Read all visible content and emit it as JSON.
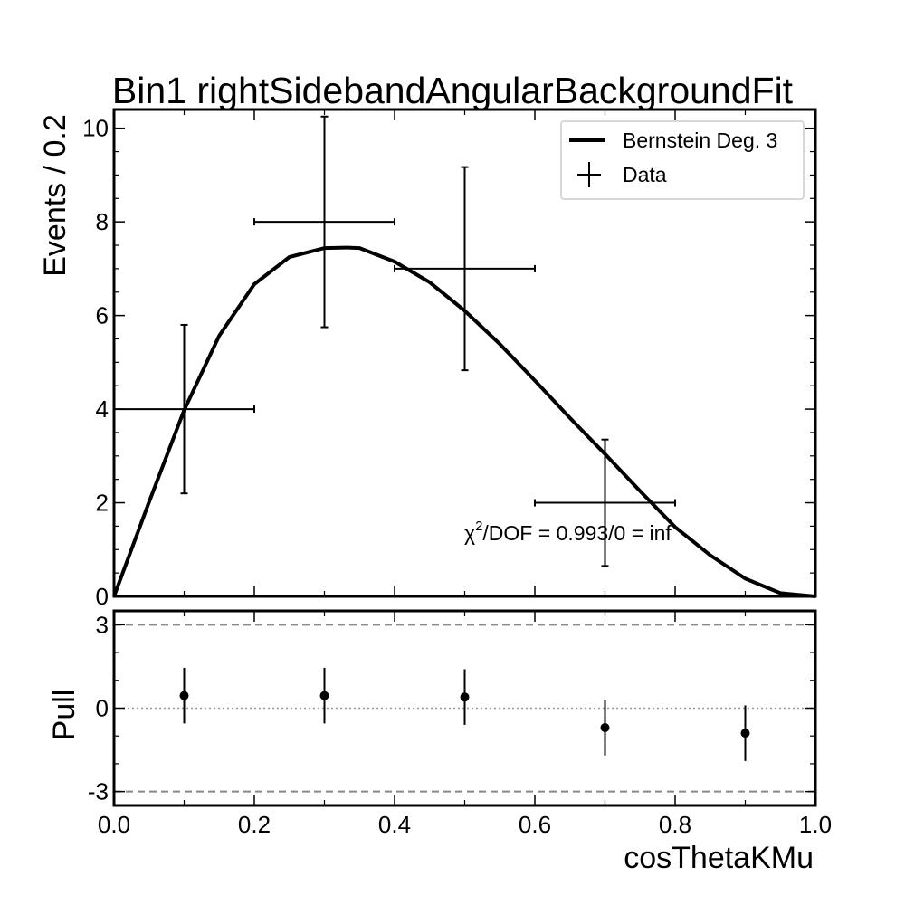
{
  "chart_data": [
    {
      "type": "scatter",
      "title": "Bin1 rightSidebandAngularBackgroundFit",
      "ylabel": "Events / 0.2",
      "xlim": [
        0.0,
        1.0
      ],
      "ylim": [
        0,
        10.4
      ],
      "yticks": [
        0,
        2,
        4,
        6,
        8,
        10
      ],
      "legend_position": "top-right",
      "series": [
        {
          "name": "Bernstein Deg. 3",
          "kind": "line",
          "color": "#000000",
          "x": [
            0.0,
            0.05,
            0.1,
            0.15,
            0.2,
            0.25,
            0.3,
            0.333,
            0.35,
            0.4,
            0.45,
            0.5,
            0.55,
            0.6,
            0.65,
            0.7,
            0.75,
            0.8,
            0.85,
            0.9,
            0.95,
            1.0
          ],
          "y": [
            0.0,
            2.02,
            3.98,
            5.57,
            6.67,
            7.25,
            7.44,
            7.45,
            7.44,
            7.15,
            6.71,
            6.1,
            5.39,
            4.61,
            3.81,
            3.04,
            2.25,
            1.48,
            0.88,
            0.38,
            0.07,
            0.0
          ]
        },
        {
          "name": "Data",
          "kind": "errorbar",
          "color": "#000000",
          "points": [
            {
              "x": 0.1,
              "y": 4,
              "xerr": 0.1,
              "ylow": 2.2,
              "yhigh": 5.8
            },
            {
              "x": 0.3,
              "y": 8,
              "xerr": 0.1,
              "ylow": 5.75,
              "yhigh": 10.25
            },
            {
              "x": 0.5,
              "y": 7,
              "xerr": 0.1,
              "ylow": 4.83,
              "yhigh": 9.17
            },
            {
              "x": 0.7,
              "y": 2,
              "xerr": 0.1,
              "ylow": 0.65,
              "yhigh": 3.35
            }
          ]
        }
      ],
      "annotations": [
        {
          "text_pre": "χ",
          "superscript": "2",
          "text_post": "/DOF = 0.993/0 = inf",
          "x": 0.5,
          "y": 1.25
        }
      ]
    },
    {
      "type": "scatter",
      "ylabel": "Pull",
      "xlabel": "cosThetaKMu",
      "xlim": [
        0.0,
        1.0
      ],
      "ylim": [
        -3.5,
        3.5
      ],
      "yticks": [
        -3,
        0,
        3
      ],
      "xticks": [
        "0.0",
        "0.2",
        "0.4",
        "0.6",
        "0.8",
        "1.0"
      ],
      "reference_lines": [
        {
          "y": 3,
          "style": "dashed"
        },
        {
          "y": 0,
          "style": "dotted"
        },
        {
          "y": -3,
          "style": "dashed"
        }
      ],
      "series": [
        {
          "kind": "errorbar",
          "color": "#000000",
          "points": [
            {
              "x": 0.1,
              "y": 0.45,
              "ylow": -0.55,
              "yhigh": 1.45
            },
            {
              "x": 0.3,
              "y": 0.45,
              "ylow": -0.55,
              "yhigh": 1.45
            },
            {
              "x": 0.5,
              "y": 0.4,
              "ylow": -0.6,
              "yhigh": 1.4
            },
            {
              "x": 0.7,
              "y": -0.7,
              "ylow": -1.7,
              "yhigh": 0.3
            },
            {
              "x": 0.9,
              "y": -0.9,
              "ylow": -1.9,
              "yhigh": 0.1
            }
          ]
        }
      ]
    }
  ]
}
